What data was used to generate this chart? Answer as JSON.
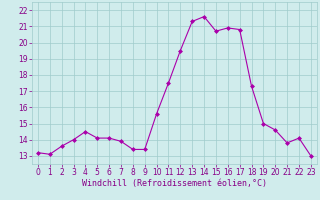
{
  "x": [
    0,
    1,
    2,
    3,
    4,
    5,
    6,
    7,
    8,
    9,
    10,
    11,
    12,
    13,
    14,
    15,
    16,
    17,
    18,
    19,
    20,
    21,
    22,
    23
  ],
  "y": [
    13.2,
    13.1,
    13.6,
    14.0,
    14.5,
    14.1,
    14.1,
    13.9,
    13.4,
    13.4,
    15.6,
    17.5,
    19.5,
    21.3,
    21.6,
    20.7,
    20.9,
    20.8,
    17.3,
    15.0,
    14.6,
    13.8,
    14.1,
    13.0
  ],
  "line_color": "#aa00aa",
  "marker": "D",
  "marker_size": 2,
  "bg_color": "#d0ecec",
  "grid_color": "#a0cccc",
  "xlabel": "Windchill (Refroidissement éolien,°C)",
  "xlim": [
    -0.5,
    23.5
  ],
  "ylim": [
    12.5,
    22.5
  ],
  "yticks": [
    13,
    14,
    15,
    16,
    17,
    18,
    19,
    20,
    21,
    22
  ],
  "xticks": [
    0,
    1,
    2,
    3,
    4,
    5,
    6,
    7,
    8,
    9,
    10,
    11,
    12,
    13,
    14,
    15,
    16,
    17,
    18,
    19,
    20,
    21,
    22,
    23
  ],
  "tick_color": "#880088",
  "label_color": "#880088",
  "tick_fontsize": 5.5,
  "xlabel_fontsize": 6.0,
  "linewidth": 0.8
}
